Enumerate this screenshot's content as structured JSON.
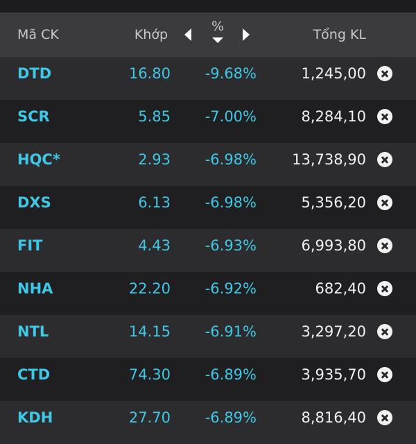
{
  "header": {
    "symbol_label": "Mã CK",
    "price_label": "Khớp",
    "percent_label": "%",
    "volume_label": "Tổng KL"
  },
  "colors": {
    "accent": "#3fc8e6",
    "header_bg": "#3b3b3f",
    "row_even_bg": "#2c2c2e",
    "row_odd_bg": "#1f1f21",
    "volume_text": "#f2f2f2"
  },
  "icons": {
    "previous_column": "caret-left-icon",
    "next_column": "caret-right-icon",
    "sort": "sort-descending-icon",
    "remove": "close-circle-icon"
  },
  "rows": [
    {
      "symbol": "DTD",
      "price": "16.80",
      "change_pct": "-9.68%",
      "volume": "1,245,00"
    },
    {
      "symbol": "SCR",
      "price": "5.85",
      "change_pct": "-7.00%",
      "volume": "8,284,10"
    },
    {
      "symbol": "HQC*",
      "price": "2.93",
      "change_pct": "-6.98%",
      "volume": "13,738,90"
    },
    {
      "symbol": "DXS",
      "price": "6.13",
      "change_pct": "-6.98%",
      "volume": "5,356,20"
    },
    {
      "symbol": "FIT",
      "price": "4.43",
      "change_pct": "-6.93%",
      "volume": "6,993,80"
    },
    {
      "symbol": "NHA",
      "price": "22.20",
      "change_pct": "-6.92%",
      "volume": "682,40"
    },
    {
      "symbol": "NTL",
      "price": "14.15",
      "change_pct": "-6.91%",
      "volume": "3,297,20"
    },
    {
      "symbol": "CTD",
      "price": "74.30",
      "change_pct": "-6.89%",
      "volume": "3,935,70"
    },
    {
      "symbol": "KDH",
      "price": "27.70",
      "change_pct": "-6.89%",
      "volume": "8,816,40"
    }
  ]
}
